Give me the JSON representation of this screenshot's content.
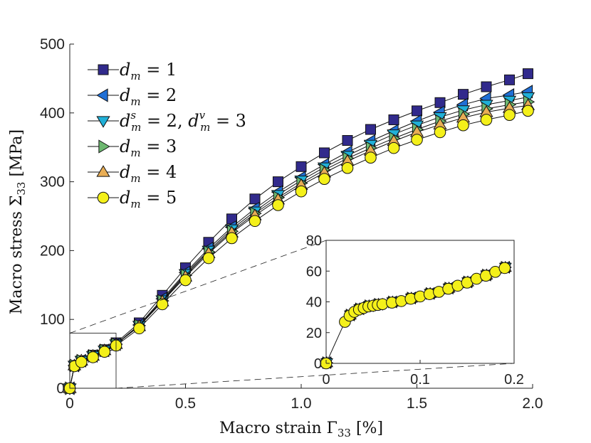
{
  "chart_data": {
    "type": "line",
    "xlabel": "Macro strain Γ",
    "xlabel_sub": "33",
    "xlabel_unit": " [%]",
    "ylabel": "Macro stress Σ",
    "ylabel_sub": "33",
    "ylabel_unit": "  [MPa]",
    "xlim": [
      0,
      2.0
    ],
    "ylim": [
      0,
      500
    ],
    "xticks": [
      "0",
      "0.5",
      "1.0",
      "1.5",
      "2.0"
    ],
    "yticks": [
      "0",
      "100",
      "200",
      "300",
      "400",
      "500"
    ],
    "series": [
      {
        "name": "d_m = 1",
        "label": {
          "base": "d",
          "sub": "m",
          "rest": " = 1"
        },
        "marker": "square",
        "color": "#312a8c",
        "x": [
          0,
          0.02,
          0.05,
          0.1,
          0.15,
          0.2,
          0.3,
          0.4,
          0.5,
          0.6,
          0.7,
          0.8,
          0.9,
          1.0,
          1.1,
          1.2,
          1.3,
          1.4,
          1.5,
          1.6,
          1.7,
          1.8,
          1.9,
          1.98
        ],
        "y": [
          0,
          33,
          40,
          48,
          56,
          66,
          95,
          135,
          175,
          212,
          246,
          275,
          300,
          322,
          342,
          360,
          376,
          390,
          403,
          415,
          427,
          438,
          448,
          457
        ]
      },
      {
        "name": "d_m = 2",
        "label": {
          "base": "d",
          "sub": "m",
          "rest": " = 2"
        },
        "marker": "triangle-left",
        "color": "#1f6fd6",
        "x": [
          0,
          0.02,
          0.05,
          0.1,
          0.15,
          0.2,
          0.3,
          0.4,
          0.5,
          0.6,
          0.7,
          0.8,
          0.9,
          1.0,
          1.1,
          1.2,
          1.3,
          1.4,
          1.5,
          1.6,
          1.7,
          1.8,
          1.9,
          1.98
        ],
        "y": [
          0,
          33,
          40,
          47,
          55,
          64,
          92,
          130,
          168,
          203,
          234,
          261,
          285,
          306,
          325,
          343,
          359,
          374,
          388,
          401,
          412,
          421,
          426,
          431
        ]
      },
      {
        "name": "d_m^s = 2, d_m^v = 3",
        "label": {
          "base": "d",
          "sub": "m",
          "sup": "s",
          "rest": " = 2, ",
          "base2": "d",
          "sub2": "m",
          "sup2": "v",
          "rest2": " = 3"
        },
        "marker": "triangle-down",
        "color": "#20b0d8",
        "x": [
          0,
          0.02,
          0.05,
          0.1,
          0.15,
          0.2,
          0.3,
          0.4,
          0.5,
          0.6,
          0.7,
          0.8,
          0.9,
          1.0,
          1.1,
          1.2,
          1.3,
          1.4,
          1.5,
          1.6,
          1.7,
          1.8,
          1.9,
          1.98
        ],
        "y": [
          0,
          33,
          40,
          47,
          55,
          64,
          91,
          128,
          166,
          200,
          231,
          257,
          281,
          302,
          321,
          338,
          354,
          369,
          382,
          394,
          404,
          412,
          418,
          423
        ]
      },
      {
        "name": "d_m = 3",
        "label": {
          "base": "d",
          "sub": "m",
          "rest": " = 3"
        },
        "marker": "triangle-right",
        "color": "#6db870",
        "x": [
          0,
          0.02,
          0.05,
          0.1,
          0.15,
          0.2,
          0.3,
          0.4,
          0.5,
          0.6,
          0.7,
          0.8,
          0.9,
          1.0,
          1.1,
          1.2,
          1.3,
          1.4,
          1.5,
          1.6,
          1.7,
          1.8,
          1.9,
          1.98
        ],
        "y": [
          0,
          33,
          40,
          47,
          55,
          64,
          91,
          127,
          164,
          198,
          228,
          254,
          277,
          298,
          317,
          334,
          349,
          363,
          376,
          388,
          398,
          406,
          412,
          416
        ]
      },
      {
        "name": "d_m = 4",
        "label": {
          "base": "d",
          "sub": "m",
          "rest": " = 4"
        },
        "marker": "triangle-up",
        "color": "#e8ad55",
        "x": [
          0,
          0.02,
          0.05,
          0.1,
          0.15,
          0.2,
          0.3,
          0.4,
          0.5,
          0.6,
          0.7,
          0.8,
          0.9,
          1.0,
          1.1,
          1.2,
          1.3,
          1.4,
          1.5,
          1.6,
          1.7,
          1.8,
          1.9,
          1.98
        ],
        "y": [
          0,
          33,
          40,
          47,
          55,
          64,
          90,
          126,
          162,
          196,
          226,
          251,
          274,
          295,
          313,
          330,
          345,
          359,
          372,
          383,
          393,
          401,
          407,
          411
        ]
      },
      {
        "name": "d_m = 5",
        "label": {
          "base": "d",
          "sub": "m",
          "rest": " = 5"
        },
        "marker": "circle",
        "color": "#f4f01a",
        "x": [
          0,
          0.02,
          0.05,
          0.1,
          0.15,
          0.2,
          0.3,
          0.4,
          0.5,
          0.6,
          0.7,
          0.8,
          0.9,
          1.0,
          1.1,
          1.2,
          1.3,
          1.4,
          1.5,
          1.6,
          1.7,
          1.8,
          1.9,
          1.98
        ],
        "y": [
          0,
          32,
          38,
          45,
          53,
          62,
          87,
          122,
          157,
          189,
          218,
          243,
          266,
          286,
          304,
          320,
          335,
          349,
          361,
          372,
          382,
          390,
          397,
          403
        ]
      }
    ],
    "inset": {
      "xlim": [
        0,
        0.2
      ],
      "ylim": [
        0,
        80
      ],
      "xticks": [
        "0",
        "0.1",
        "0.2"
      ],
      "yticks": [
        "0",
        "20",
        "40",
        "60",
        "80"
      ],
      "x": [
        0,
        0.02,
        0.025,
        0.03,
        0.035,
        0.04,
        0.045,
        0.05,
        0.055,
        0.06,
        0.07,
        0.08,
        0.09,
        0.1,
        0.11,
        0.12,
        0.13,
        0.14,
        0.15,
        0.16,
        0.17,
        0.18,
        0.19
      ],
      "y": [
        0,
        27,
        31,
        33.5,
        35,
        36,
        37,
        37.5,
        38,
        38.5,
        39.5,
        40.5,
        42,
        43.5,
        45,
        46.5,
        48.5,
        50.5,
        52.5,
        55,
        57,
        59.5,
        62
      ]
    },
    "zoom_box": {
      "xlim": [
        0,
        0.2
      ],
      "ylim": [
        0,
        80
      ]
    },
    "legend_location": "top-left"
  }
}
